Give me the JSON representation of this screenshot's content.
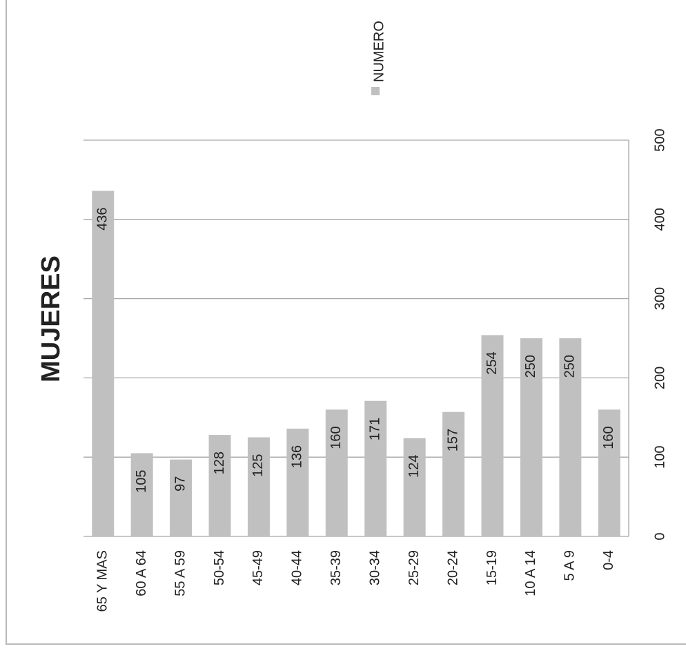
{
  "chart_data": {
    "type": "bar",
    "orientation": "rotated-90-clockwise",
    "title": "MUJERES",
    "legend": {
      "label": "NUMERO",
      "color": "#c0c0c0",
      "placement": "top-right"
    },
    "categories": [
      "65 Y MAS",
      "60 A 64",
      "55 A 59",
      "50-54",
      "45-49",
      "40-44",
      "35-39",
      "30-34",
      "25-29",
      "20-24",
      "15-19",
      "10 A 14",
      "5 A 9",
      "0-4"
    ],
    "series": [
      {
        "name": "NUMERO",
        "values": [
          436,
          105,
          97,
          128,
          125,
          136,
          160,
          171,
          124,
          157,
          254,
          250,
          250,
          160
        ]
      }
    ],
    "ylim": [
      0,
      500
    ],
    "yticks": [
      0,
      100,
      200,
      300,
      400,
      500
    ],
    "grid": true,
    "data_labels": true
  },
  "colors": {
    "bar": "#c0c0c0",
    "grid": "#a6a6a6",
    "text": "#222222"
  }
}
